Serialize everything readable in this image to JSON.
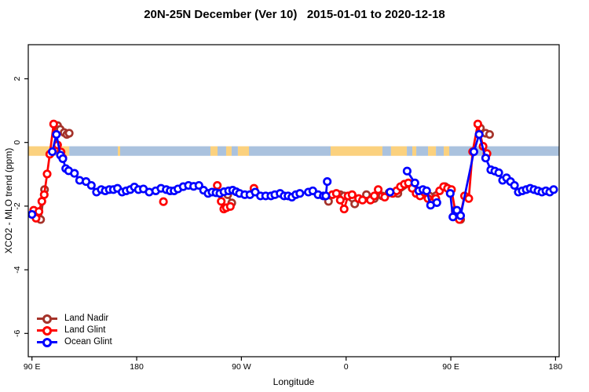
{
  "chart_data": {
    "type": "scatter",
    "title": "20N-25N December (Ver 10)   2015-01-01 to 2020-12-18",
    "xlabel": "Longitude",
    "ylabel": "XCO2 - MLO trend (ppm)",
    "x_axis": {
      "note": "axis position = degrees east of 90E, axis spans 450 degrees",
      "range": [
        0,
        450
      ],
      "ticks": [
        {
          "label": "90 E",
          "pos": 0
        },
        {
          "label": "180",
          "pos": 90
        },
        {
          "label": "90 W",
          "pos": 180
        },
        {
          "label": "0",
          "pos": 270
        },
        {
          "label": "90 E",
          "pos": 360
        },
        {
          "label": "180",
          "pos": 450
        }
      ]
    },
    "y_axis": {
      "range": [
        -6.73,
        3.07
      ],
      "ticks": [
        {
          "label": "2",
          "value": 2
        },
        {
          "label": "0",
          "value": 0
        },
        {
          "label": "-2",
          "value": -2
        },
        {
          "label": "-4",
          "value": -4
        },
        {
          "label": "-6",
          "value": -6
        }
      ]
    },
    "surface_band": {
      "y_top": -0.12,
      "y_bottom": -0.42,
      "colors": {
        "ocean": "#aac2de",
        "land": "#fbd17e"
      },
      "segments": [
        {
          "type": "land",
          "from": -3.5,
          "to": 32
        },
        {
          "type": "ocean",
          "from": 32,
          "to": 73.8
        },
        {
          "type": "land",
          "from": 73.8,
          "to": 75.8
        },
        {
          "type": "ocean",
          "from": 75.8,
          "to": 153.4
        },
        {
          "type": "land",
          "from": 153.4,
          "to": 159.5
        },
        {
          "type": "ocean",
          "from": 159.5,
          "to": 166.9
        },
        {
          "type": "land",
          "from": 166.9,
          "to": 171.6
        },
        {
          "type": "ocean",
          "from": 171.6,
          "to": 177
        },
        {
          "type": "land",
          "from": 177,
          "to": 186.5
        },
        {
          "type": "ocean",
          "from": 186.5,
          "to": 256.7
        },
        {
          "type": "land",
          "from": 256.7,
          "to": 301.2
        },
        {
          "type": "ocean",
          "from": 301.2,
          "to": 308.6
        },
        {
          "type": "land",
          "from": 308.6,
          "to": 322.2
        },
        {
          "type": "ocean",
          "from": 322.2,
          "to": 326.9
        },
        {
          "type": "land",
          "from": 326.9,
          "to": 330.3
        },
        {
          "type": "ocean",
          "from": 330.3,
          "to": 340.4
        },
        {
          "type": "land",
          "from": 340.4,
          "to": 347.2
        },
        {
          "type": "ocean",
          "from": 347.2,
          "to": 353.9
        },
        {
          "type": "land",
          "from": 353.9,
          "to": 358.6
        },
        {
          "type": "ocean",
          "from": 358.6,
          "to": 453.5
        }
      ]
    },
    "series": [
      {
        "name": "Land Nadir",
        "color": "#a5332a",
        "segments": [
          [
            [
              1.8,
              -2.17
            ],
            [
              7.4,
              -2.42
            ],
            [
              10.8,
              -1.48
            ]
          ],
          [
            [
              22,
              0.53
            ],
            [
              24.3,
              0.41
            ],
            [
              27.7,
              0.31
            ],
            [
              30,
              0.25
            ],
            [
              32,
              0.29
            ]
          ],
          [
            [
              168.3,
              -1.64
            ],
            [
              171.7,
              -1.9
            ]
          ],
          [
            [
              254.9,
              -1.85
            ]
          ],
          [
            [
              265,
              -1.64
            ],
            [
              268.3,
              -1.68
            ],
            [
              277.4,
              -1.93
            ],
            [
              287.5,
              -1.64
            ],
            [
              294.3,
              -1.76
            ],
            [
              301,
              -1.68
            ],
            [
              306.9,
              -1.58
            ]
          ],
          [
            [
              314.5,
              -1.6
            ],
            [
              325.7,
              -1.31
            ],
            [
              341.5,
              -1.68
            ],
            [
              355,
              -1.39
            ],
            [
              359.5,
              -1.48
            ]
          ],
          [
            [
              363.9,
              -2.13
            ],
            [
              368.4,
              -2.42
            ]
          ],
          [
            [
              385.4,
              0.45
            ],
            [
              389.9,
              0.29
            ],
            [
              393.3,
              0.25
            ]
          ]
        ]
      },
      {
        "name": "Land Glint",
        "color": "#ff0000",
        "segments": [
          [
            [
              1.5,
              -2.13
            ],
            [
              3.5,
              -2.38
            ],
            [
              6,
              -2.17
            ],
            [
              8.5,
              -1.85
            ],
            [
              10.5,
              -1.64
            ],
            [
              13,
              -0.99
            ],
            [
              15.3,
              -0.37
            ],
            [
              18.6,
              0.58
            ],
            [
              22,
              -0.08
            ],
            [
              25,
              -0.3
            ],
            [
              26.5,
              -0.49
            ]
          ],
          [
            [
              113,
              -1.86
            ]
          ],
          [
            [
              159.3,
              -1.35
            ],
            [
              162.7,
              -1.85
            ],
            [
              164.9,
              -2.09
            ],
            [
              167.1,
              -2.05
            ],
            [
              170.5,
              -2.01
            ]
          ],
          [
            [
              190.8,
              -1.44
            ]
          ],
          [
            [
              258.2,
              -1.64
            ],
            [
              261.6,
              -1.6
            ],
            [
              265,
              -1.81
            ],
            [
              268.3,
              -2.09
            ],
            [
              271.7,
              -1.68
            ],
            [
              275.1,
              -1.64
            ],
            [
              280.8,
              -1.76
            ],
            [
              284.1,
              -1.81
            ],
            [
              290.9,
              -1.81
            ],
            [
              294.3,
              -1.68
            ],
            [
              297.6,
              -1.48
            ],
            [
              303.2,
              -1.72
            ],
            [
              310,
              -1.6
            ],
            [
              313.4,
              -1.52
            ],
            [
              316.7,
              -1.39
            ],
            [
              320.1,
              -1.31
            ],
            [
              323.5,
              -1.27
            ],
            [
              326.8,
              -1.44
            ],
            [
              330.2,
              -1.6
            ],
            [
              333.6,
              -1.68
            ],
            [
              337,
              -1.56
            ],
            [
              340.3,
              -1.76
            ],
            [
              343.7,
              -1.89
            ],
            [
              347.1,
              -1.76
            ],
            [
              350.4,
              -1.52
            ],
            [
              353.8,
              -1.39
            ],
            [
              357.2,
              -1.44
            ],
            [
              360.6,
              -1.48
            ],
            [
              363.9,
              -2.17
            ],
            [
              367.3,
              -2.42
            ],
            [
              371.8,
              -1.68
            ],
            [
              375.4,
              -1.76
            ],
            [
              378.7,
              -0.29
            ],
            [
              383.2,
              0.58
            ],
            [
              387.7,
              -0.12
            ],
            [
              391.1,
              -0.35
            ]
          ]
        ]
      },
      {
        "name": "Ocean Glint",
        "color": "#0000ff",
        "segments": [
          [
            [
              0,
              -2.26
            ]
          ],
          [
            [
              17.5,
              -0.29
            ],
            [
              21,
              0.25
            ],
            [
              24.5,
              -0.4
            ],
            [
              26.5,
              -0.51
            ],
            [
              29,
              -0.82
            ],
            [
              31.5,
              -0.89
            ],
            [
              36.5,
              -0.97
            ],
            [
              41,
              -1.19
            ],
            [
              46.5,
              -1.23
            ],
            [
              51,
              -1.35
            ],
            [
              55.5,
              -1.56
            ],
            [
              59.5,
              -1.48
            ],
            [
              63,
              -1.52
            ],
            [
              66.5,
              -1.48
            ],
            [
              70,
              -1.48
            ],
            [
              73.5,
              -1.44
            ],
            [
              77.5,
              -1.56
            ],
            [
              81,
              -1.52
            ],
            [
              84.5,
              -1.48
            ],
            [
              88,
              -1.4
            ],
            [
              91.5,
              -1.48
            ],
            [
              95.8,
              -1.46
            ],
            [
              100.8,
              -1.56
            ],
            [
              106.4,
              -1.52
            ],
            [
              110.9,
              -1.44
            ],
            [
              115.4,
              -1.48
            ],
            [
              118.8,
              -1.52
            ],
            [
              122.2,
              -1.52
            ],
            [
              125.5,
              -1.46
            ],
            [
              130,
              -1.39
            ],
            [
              134.5,
              -1.35
            ],
            [
              139,
              -1.38
            ],
            [
              143.5,
              -1.35
            ],
            [
              147.5,
              -1.5
            ],
            [
              151.4,
              -1.6
            ],
            [
              154.8,
              -1.56
            ],
            [
              158.2,
              -1.58
            ],
            [
              161.5,
              -1.6
            ],
            [
              165,
              -1.55
            ],
            [
              169,
              -1.52
            ],
            [
              172.5,
              -1.5
            ],
            [
              175.5,
              -1.55
            ],
            [
              178.4,
              -1.6
            ],
            [
              182.9,
              -1.64
            ],
            [
              187.4,
              -1.64
            ],
            [
              191.9,
              -1.56
            ],
            [
              196.4,
              -1.68
            ],
            [
              200.9,
              -1.68
            ],
            [
              205.4,
              -1.68
            ],
            [
              208.8,
              -1.64
            ],
            [
              213.3,
              -1.6
            ],
            [
              216.7,
              -1.68
            ],
            [
              220.1,
              -1.68
            ],
            [
              223.4,
              -1.72
            ],
            [
              226.8,
              -1.64
            ],
            [
              230.2,
              -1.6
            ],
            [
              237.6,
              -1.56
            ],
            [
              241.4,
              -1.52
            ],
            [
              245.9,
              -1.64
            ],
            [
              250.4,
              -1.68
            ],
            [
              252.6,
              -1.68
            ],
            [
              253.8,
              -1.23
            ]
          ],
          [
            [
              307.8,
              -1.56
            ]
          ],
          [
            [
              322.4,
              -0.9
            ],
            [
              329.1,
              -1.27
            ],
            [
              332.5,
              -1.52
            ],
            [
              336,
              -1.48
            ],
            [
              339.2,
              -1.52
            ],
            [
              342.6,
              -1.97
            ],
            [
              348,
              -1.89
            ]
          ],
          [
            [
              359.5,
              -1.6
            ],
            [
              361.8,
              -2.34
            ],
            [
              365.2,
              -2.13
            ],
            [
              368.4,
              -2.3
            ],
            [
              379.8,
              -0.29
            ],
            [
              384.3,
              0.25
            ],
            [
              389.9,
              -0.49
            ],
            [
              394.4,
              -0.86
            ],
            [
              397.8,
              -0.9
            ],
            [
              401.2,
              -0.95
            ],
            [
              404.5,
              -1.19
            ],
            [
              407.9,
              -1.11
            ],
            [
              411.3,
              -1.23
            ],
            [
              414.7,
              -1.35
            ],
            [
              418,
              -1.56
            ],
            [
              421.4,
              -1.52
            ],
            [
              424.8,
              -1.48
            ],
            [
              428.2,
              -1.44
            ],
            [
              431.5,
              -1.48
            ],
            [
              434.9,
              -1.52
            ],
            [
              438.3,
              -1.56
            ],
            [
              441.7,
              -1.52
            ],
            [
              445,
              -1.56
            ],
            [
              448.4,
              -1.48
            ]
          ]
        ]
      }
    ],
    "legend_position": "bottom-left",
    "grid": false
  }
}
